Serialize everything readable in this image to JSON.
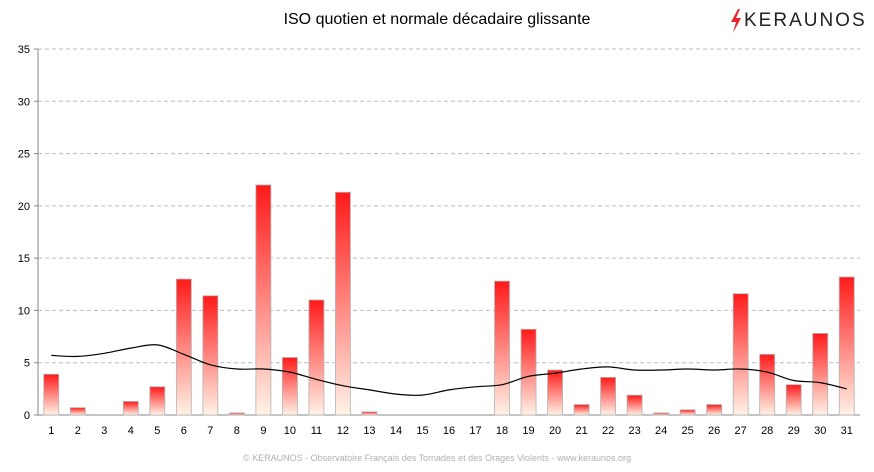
{
  "brand": {
    "name": "KERAUNOS",
    "accent": "#e8262b"
  },
  "footer": "© KERAUNOS - Observatoire Français des Tornades et des Orages Violents - www.keraunos.org",
  "chart_data": {
    "type": "bar",
    "title": "ISO quotien et normale décadaire glissante",
    "xlabel": "",
    "ylabel": "",
    "ylim": [
      0,
      35
    ],
    "yticks": [
      0,
      5,
      10,
      15,
      20,
      25,
      30,
      35
    ],
    "grid": true,
    "categories": [
      "1",
      "2",
      "3",
      "4",
      "5",
      "6",
      "7",
      "8",
      "9",
      "10",
      "11",
      "12",
      "13",
      "14",
      "15",
      "16",
      "17",
      "18",
      "19",
      "20",
      "21",
      "22",
      "23",
      "24",
      "25",
      "26",
      "27",
      "28",
      "29",
      "30",
      "31"
    ],
    "series": [
      {
        "type": "bar",
        "color_top": "#ff1a1a",
        "color_bottom": "#fff2e6",
        "values": [
          3.9,
          0.7,
          0,
          1.3,
          2.7,
          13.0,
          11.4,
          0.2,
          22.0,
          5.5,
          11.0,
          21.3,
          0.3,
          0,
          0,
          0,
          0,
          12.8,
          8.2,
          4.3,
          1.0,
          3.6,
          1.9,
          0.2,
          0.5,
          1.0,
          11.6,
          5.8,
          2.9,
          7.8,
          13.2
        ]
      },
      {
        "type": "line",
        "color": "#000000",
        "values": [
          5.7,
          5.6,
          5.9,
          6.4,
          6.7,
          5.8,
          4.8,
          4.4,
          4.4,
          4.1,
          3.4,
          2.8,
          2.4,
          2.0,
          1.9,
          2.4,
          2.7,
          2.9,
          3.7,
          4.0,
          4.4,
          4.6,
          4.3,
          4.3,
          4.4,
          4.3,
          4.4,
          4.1,
          3.3,
          3.1,
          2.5
        ]
      }
    ]
  }
}
